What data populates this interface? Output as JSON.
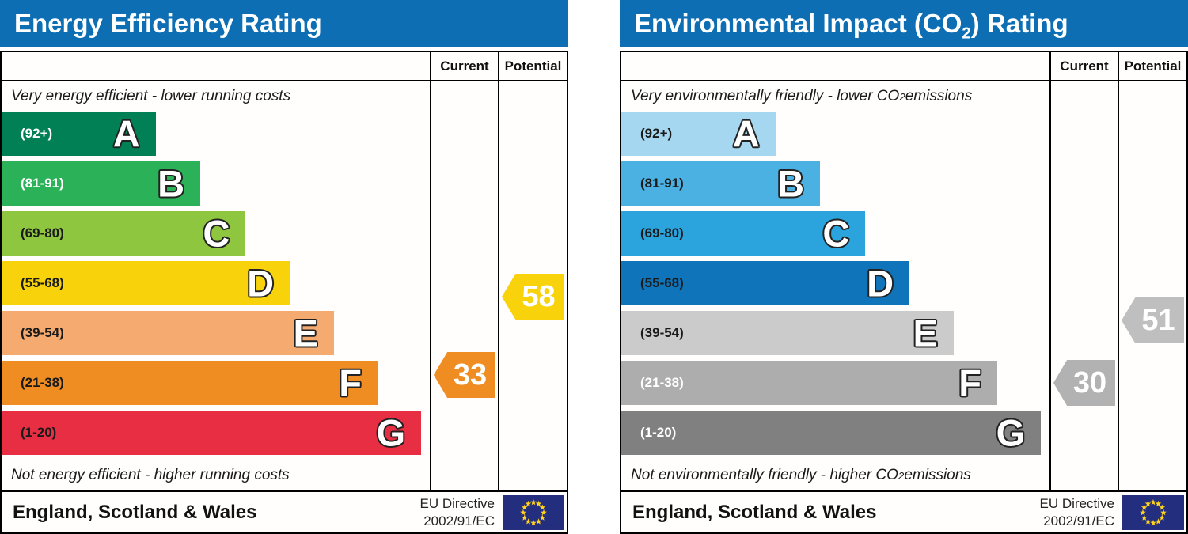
{
  "charts": [
    {
      "title": {
        "pre": "Energy Efficiency Rating",
        "sub": "",
        "post": ""
      },
      "columns": {
        "current": "Current",
        "potential": "Potential"
      },
      "top_note": {
        "pre": "Very energy efficient - lower running costs",
        "sub": "",
        "post": ""
      },
      "bottom_note": {
        "pre": "Not energy efficient - higher running costs",
        "sub": "",
        "post": ""
      },
      "bands": [
        {
          "letter": "A",
          "range": "(92+)",
          "min": 92,
          "max": 100,
          "color": "#008054",
          "range_color": "#ffffff",
          "width_pct": 36.0
        },
        {
          "letter": "B",
          "range": "(81-91)",
          "min": 81,
          "max": 91,
          "color": "#2bb258",
          "range_color": "#ffffff",
          "width_pct": 46.4
        },
        {
          "letter": "C",
          "range": "(69-80)",
          "min": 69,
          "max": 80,
          "color": "#8fc63f",
          "range_color": "#1a1a1a",
          "width_pct": 57.0
        },
        {
          "letter": "D",
          "range": "(55-68)",
          "min": 55,
          "max": 68,
          "color": "#f8d30c",
          "range_color": "#1a1a1a",
          "width_pct": 67.3
        },
        {
          "letter": "E",
          "range": "(39-54)",
          "min": 39,
          "max": 54,
          "color": "#f5aa6f",
          "range_color": "#1a1a1a",
          "width_pct": 77.6
        },
        {
          "letter": "F",
          "range": "(21-38)",
          "min": 21,
          "max": 38,
          "color": "#ef8d23",
          "range_color": "#1a1a1a",
          "width_pct": 87.8
        },
        {
          "letter": "G",
          "range": "(1-20)",
          "min": 1,
          "max": 20,
          "color": "#e72e43",
          "range_color": "#1a1a1a",
          "width_pct": 98.0
        }
      ],
      "current": {
        "value": "33",
        "color": "#ef8d23"
      },
      "potential": {
        "value": "58",
        "color": "#f8d30c"
      },
      "footer": {
        "region": "England, Scotland & Wales",
        "directive_line1": "EU Directive",
        "directive_line2": "2002/91/EC"
      }
    },
    {
      "title": {
        "pre": "Environmental Impact (CO",
        "sub": "2",
        "post": ") Rating"
      },
      "columns": {
        "current": "Current",
        "potential": "Potential"
      },
      "top_note": {
        "pre": "Very environmentally friendly - lower CO",
        "sub": "2",
        "post": " emissions"
      },
      "bottom_note": {
        "pre": "Not environmentally friendly - higher CO",
        "sub": "2",
        "post": " emissions"
      },
      "bands": [
        {
          "letter": "A",
          "range": "(92+)",
          "min": 92,
          "max": 100,
          "color": "#a5d8f0",
          "range_color": "#1a1a1a",
          "width_pct": 36.0
        },
        {
          "letter": "B",
          "range": "(81-91)",
          "min": 81,
          "max": 91,
          "color": "#4bb0e2",
          "range_color": "#1a1a1a",
          "width_pct": 46.4
        },
        {
          "letter": "C",
          "range": "(69-80)",
          "min": 69,
          "max": 80,
          "color": "#2ba3dc",
          "range_color": "#1a1a1a",
          "width_pct": 57.0
        },
        {
          "letter": "D",
          "range": "(55-68)",
          "min": 55,
          "max": 68,
          "color": "#1074ba",
          "range_color": "#1a1a1a",
          "width_pct": 67.3
        },
        {
          "letter": "E",
          "range": "(39-54)",
          "min": 39,
          "max": 54,
          "color": "#cbcbcb",
          "range_color": "#1a1a1a",
          "width_pct": 77.6
        },
        {
          "letter": "F",
          "range": "(21-38)",
          "min": 21,
          "max": 38,
          "color": "#adadad",
          "range_color": "#ffffff",
          "width_pct": 87.8
        },
        {
          "letter": "G",
          "range": "(1-20)",
          "min": 1,
          "max": 20,
          "color": "#808080",
          "range_color": "#ffffff",
          "width_pct": 98.0
        }
      ],
      "current": {
        "value": "30",
        "color": "#b2b2b2"
      },
      "potential": {
        "value": "51",
        "color": "#bfbfbf"
      },
      "footer": {
        "region": "England, Scotland & Wales",
        "directive_line1": "EU Directive",
        "directive_line2": "2002/91/EC"
      }
    }
  ],
  "colors": {
    "title_bar": "#0d6eb3",
    "eu_flag_blue": "#232e7f",
    "eu_flag_star": "#ffd21c"
  },
  "chart_data": [
    {
      "type": "bar",
      "title": "Energy Efficiency Rating",
      "categories": [
        "A (92+)",
        "B (81-91)",
        "C (69-80)",
        "D (55-68)",
        "E (39-54)",
        "F (21-38)",
        "G (1-20)"
      ],
      "band_ranges": [
        [
          92,
          100
        ],
        [
          81,
          91
        ],
        [
          69,
          80
        ],
        [
          55,
          68
        ],
        [
          39,
          54
        ],
        [
          21,
          38
        ],
        [
          1,
          20
        ]
      ],
      "current": {
        "value": 33,
        "band": "F"
      },
      "potential": {
        "value": 58,
        "band": "D"
      },
      "top_annotation": "Very energy efficient - lower running costs",
      "bottom_annotation": "Not energy efficient - higher running costs",
      "region": "England, Scotland & Wales",
      "directive": "EU Directive 2002/91/EC"
    },
    {
      "type": "bar",
      "title": "Environmental Impact (CO2) Rating",
      "categories": [
        "A (92+)",
        "B (81-91)",
        "C (69-80)",
        "D (55-68)",
        "E (39-54)",
        "F (21-38)",
        "G (1-20)"
      ],
      "band_ranges": [
        [
          92,
          100
        ],
        [
          81,
          91
        ],
        [
          69,
          80
        ],
        [
          55,
          68
        ],
        [
          39,
          54
        ],
        [
          21,
          38
        ],
        [
          1,
          20
        ]
      ],
      "current": {
        "value": 30,
        "band": "F"
      },
      "potential": {
        "value": 51,
        "band": "E"
      },
      "top_annotation": "Very environmentally friendly - lower CO2 emissions",
      "bottom_annotation": "Not environmentally friendly - higher CO2 emissions",
      "region": "England, Scotland & Wales",
      "directive": "EU Directive 2002/91/EC"
    }
  ]
}
